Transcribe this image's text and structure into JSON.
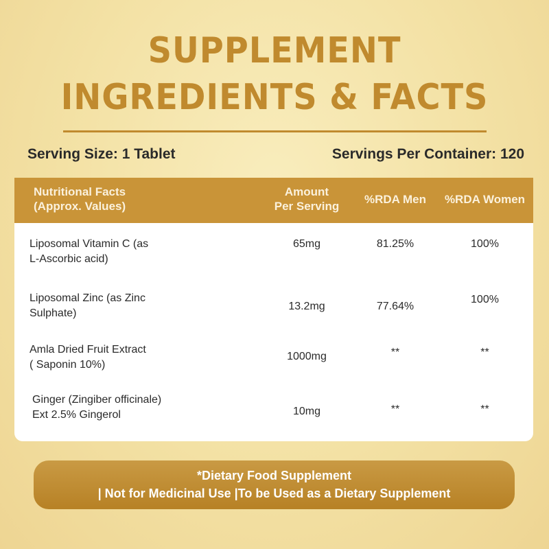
{
  "title": {
    "line1": "SUPPLEMENT",
    "line2": "INGREDIENTS & FACTS"
  },
  "serving": {
    "size": "Serving Size: 1 Tablet",
    "per_container": "Servings Per Container: 120"
  },
  "table": {
    "headers": {
      "name_line1": "Nutritional Facts",
      "name_line2": "(Approx. Values)",
      "amount_line1": "Amount",
      "amount_line2": "Per Serving",
      "men": "%RDA Men",
      "women": "%RDA Women"
    },
    "rows": [
      {
        "name_line1": "Liposomal Vitamin C (as",
        "name_line2": "L-Ascorbic acid)",
        "amount": "65mg",
        "men": "81.25%",
        "women": "100%"
      },
      {
        "name_line1": "Liposomal Zinc (as Zinc",
        "name_line2": "Sulphate)",
        "amount": "13.2mg",
        "men": "77.64%",
        "women": "100%"
      },
      {
        "name_line1": "Amla Dried Fruit Extract",
        "name_line2": "( Saponin 10%)",
        "amount": "1000mg",
        "men": "**",
        "women": "**"
      },
      {
        "name_line1": "Ginger (Zingiber officinale)",
        "name_line2": "Ext 2.5% Gingerol",
        "amount": "10mg",
        "men": "**",
        "women": "**"
      }
    ]
  },
  "footer": {
    "line1": "*Dietary Food Supplement",
    "line2": "| Not for Medicinal Use |To be Used as a Dietary Supplement"
  },
  "colors": {
    "accent": "#c08a2e",
    "header_bg": "#c99438",
    "background": "#f3e1a4"
  }
}
